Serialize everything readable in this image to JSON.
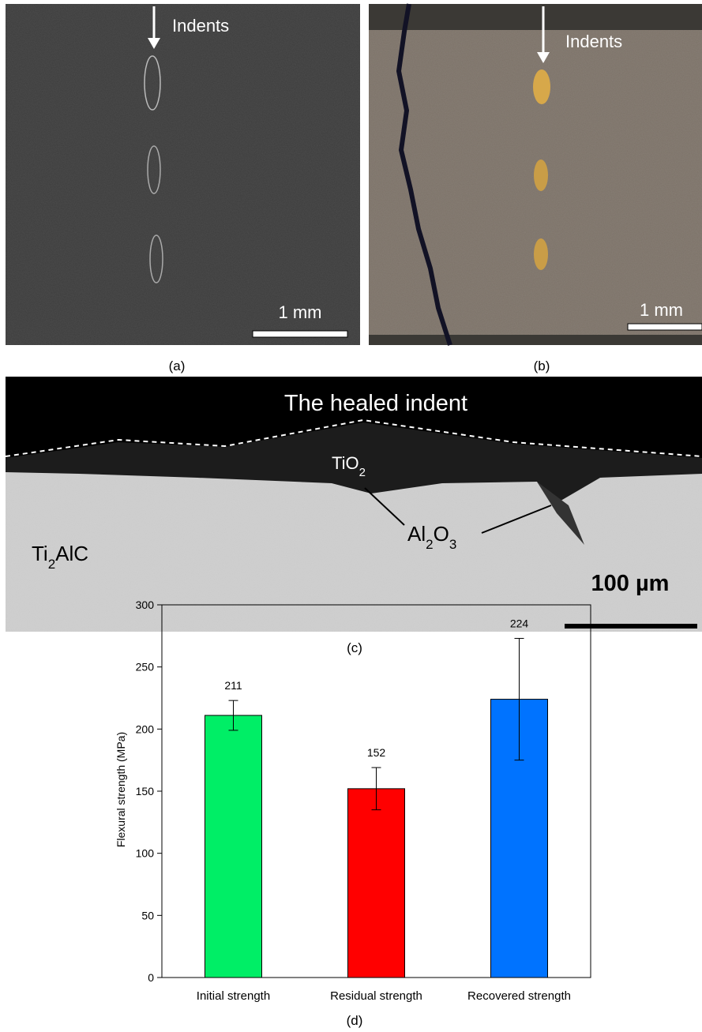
{
  "panels": [
    {
      "label": "(a)",
      "annotation": "Indents",
      "scale_bar": "1 mm"
    },
    {
      "label": "(b)",
      "annotation": "Indents",
      "scale_bar": "1 mm"
    },
    {
      "label": "(c)",
      "title": "The healed indent",
      "phases": {
        "tio2": [
          "TiO",
          "2"
        ],
        "al2o3": [
          "Al",
          "2",
          "O",
          "3"
        ],
        "ti2alc": [
          "Ti",
          "2",
          "AlC"
        ]
      },
      "scale_bar": "100 µm"
    }
  ],
  "chart_data": {
    "type": "bar",
    "caption": "(d)",
    "y_label": "Flexural strength (MPa)",
    "categories": [
      "Initial strength",
      "Residual strength",
      "Recovered strength"
    ],
    "values": [
      211,
      152,
      224
    ],
    "errors": [
      12,
      17,
      49
    ],
    "colors": [
      "#00ee66",
      "#ff0000",
      "#0073ff"
    ],
    "ylim": [
      0,
      300
    ],
    "yticks": [
      0,
      50,
      100,
      150,
      200,
      250,
      300
    ],
    "grid": false
  }
}
